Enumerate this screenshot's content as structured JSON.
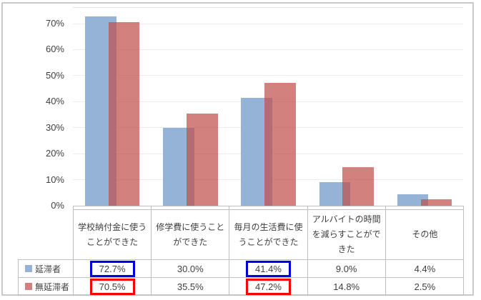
{
  "chart_data": {
    "type": "bar",
    "title": "",
    "categories": [
      "学校納付金に使うことができた",
      "修学費に使うことができた",
      "毎月の生活費に使うことができた",
      "アルバイトの時間を減らすことができた",
      "その他"
    ],
    "series": [
      {
        "name": "延滞者",
        "values": [
          72.7,
          30.0,
          41.4,
          9.0,
          4.4
        ],
        "value_labels": [
          "72.7%",
          "30.0%",
          "41.4%",
          "9.0%",
          "4.4%"
        ],
        "bar_color": "#95B3D7",
        "legend_color": "#95B3D7",
        "highlighted_columns": [
          0,
          2
        ],
        "highlight_color": "#0000E0"
      },
      {
        "name": "無延滞者",
        "values": [
          70.5,
          35.5,
          47.2,
          14.8,
          2.5
        ],
        "value_labels": [
          "70.5%",
          "35.5%",
          "47.2%",
          "14.8%",
          "2.5%"
        ],
        "bar_color": "rgba(192,80,77,0.72)",
        "legend_color": "#D28180",
        "highlighted_columns": [
          0,
          2
        ],
        "highlight_color": "#FF0000"
      }
    ],
    "y_axis": {
      "tick_labels": [
        "0%",
        "10%",
        "20%",
        "30%",
        "40%",
        "50%",
        "60%",
        "70%"
      ],
      "min": 0,
      "max": 70,
      "step": 10
    },
    "grid": true,
    "legend_position": "data-table-left",
    "bar_overlap_percent": 25
  },
  "colors": {
    "gridline": "#ECECEC",
    "axis_line": "#BFBFBF",
    "table_border": "#BFBFBF",
    "text": "#3F3F3F",
    "chart_border": "#C9C9C9"
  }
}
